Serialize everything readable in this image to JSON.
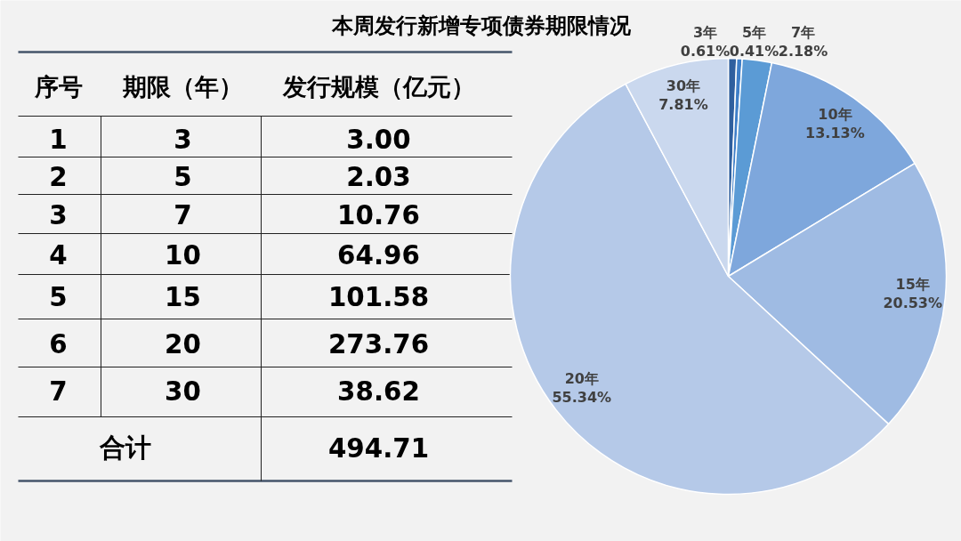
{
  "chart_data": {
    "type": "pie",
    "title": "本周发行新增专项债券期限情况",
    "categories": [
      "3年",
      "5年",
      "7年",
      "10年",
      "15年",
      "20年",
      "30年"
    ],
    "values": [
      0.61,
      0.41,
      2.18,
      13.13,
      20.53,
      55.34,
      7.81
    ],
    "value_labels": [
      "0.61%",
      "0.41%",
      "2.18%",
      "13.13%",
      "20.53%",
      "55.34%",
      "7.81%"
    ],
    "colors": [
      "#2f5f9e",
      "#3f7fc8",
      "#5b9bd5",
      "#7ea7dc",
      "#9fbbe3",
      "#b5c9e8",
      "#cad8ee"
    ],
    "annotations": [
      "序号",
      "期限（年）",
      "发行规模（亿元）",
      "1",
      "2",
      "3",
      "4",
      "5",
      "6",
      "7",
      "3",
      "5",
      "7",
      "10",
      "15",
      "20",
      "30",
      "3.00",
      "2.03",
      "10.76",
      "64.96",
      "101.58",
      "273.76",
      "38.62",
      "合计",
      "494.71"
    ]
  }
}
